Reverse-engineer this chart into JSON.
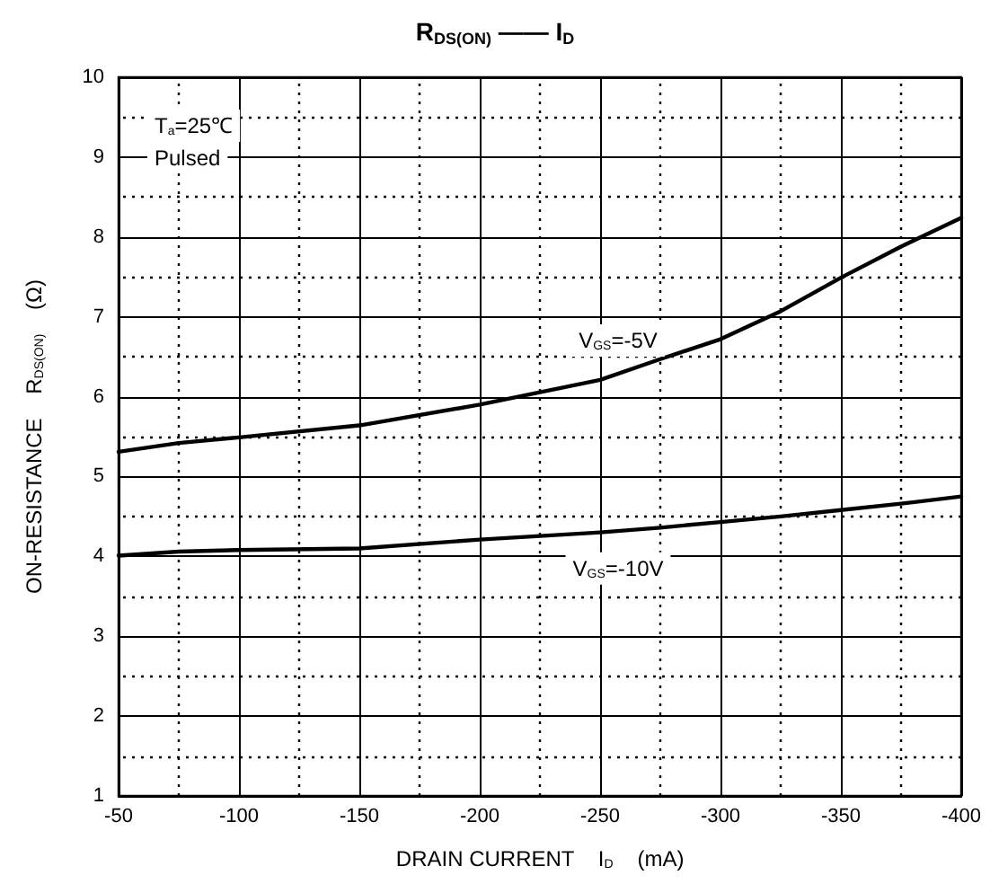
{
  "chart_data": {
    "type": "line",
    "title": "R$_{DS(ON)}$ —— I$_{D}$",
    "xlabel": "DRAIN CURRENT    I$_{D}$    (mA)",
    "ylabel": "ON-RESISTANCE    R$_{DS(ON)}$    (Ω)",
    "x": [
      -50,
      -75,
      -100,
      -150,
      -200,
      -250,
      -275,
      -300,
      -325,
      -350,
      -375,
      -400
    ],
    "series": [
      {
        "name": "V$_{GS}$=-5V",
        "color": "#000000",
        "values": [
          5.31,
          5.42,
          5.49,
          5.64,
          5.9,
          6.21,
          6.47,
          6.72,
          7.07,
          7.49,
          7.88,
          8.24
        ]
      },
      {
        "name": "V$_{GS}$=-10V",
        "color": "#000000",
        "values": [
          4.01,
          4.06,
          4.08,
          4.1,
          4.21,
          4.3,
          4.36,
          4.43,
          4.5,
          4.58,
          4.66,
          4.75
        ]
      }
    ],
    "xlim": [
      -50,
      -400
    ],
    "xticks": [
      -50,
      {
        "value": -75,
        "label": null
      },
      -100,
      {
        "value": -125,
        "label": null
      },
      -150,
      {
        "value": -175,
        "label": null
      },
      -200,
      {
        "value": -225,
        "label": null
      },
      -250,
      {
        "value": -275,
        "label": null
      },
      -300,
      {
        "value": -325,
        "label": null
      },
      -350,
      {
        "value": -375,
        "label": null
      },
      -400
    ],
    "ylim": [
      1,
      10
    ],
    "yticks": [
      1,
      {
        "value": 1.5,
        "label": null
      },
      2,
      {
        "value": 2.5,
        "label": null
      },
      3,
      {
        "value": 3.5,
        "label": null
      },
      4,
      {
        "value": 4.5,
        "label": null
      },
      5,
      {
        "value": 5.5,
        "label": null
      },
      6,
      {
        "value": 6.5,
        "label": null
      },
      7,
      {
        "value": 7.5,
        "label": null
      },
      8,
      {
        "value": 8.5,
        "label": null
      },
      9,
      {
        "value": 9.5,
        "label": null
      },
      10
    ],
    "grid": true,
    "marker": "none",
    "line_style": "solid",
    "annotations": [
      "T$_{a}$=25℃",
      "Pulsed"
    ]
  }
}
